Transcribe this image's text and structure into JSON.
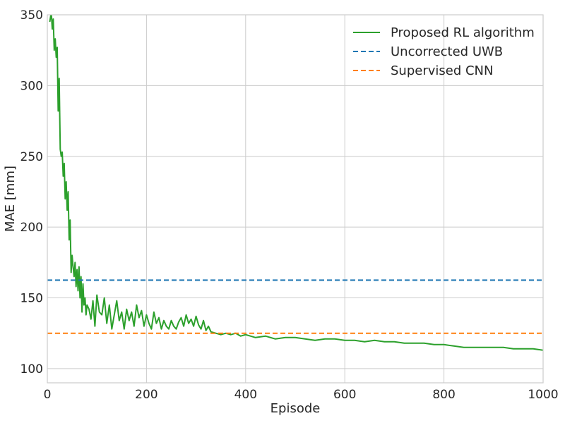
{
  "chart_data": {
    "type": "line",
    "title": "",
    "xlabel": "Episode",
    "ylabel": "MAE [mm]",
    "xlim": [
      0,
      1000
    ],
    "ylim": [
      90,
      350
    ],
    "xticks": [
      0,
      200,
      400,
      600,
      800,
      1000
    ],
    "yticks": [
      100,
      150,
      200,
      250,
      300,
      350
    ],
    "grid": true,
    "legend_position": "top-right",
    "series": [
      {
        "name": "Proposed RL algorithm",
        "style": "solid",
        "color": "#2ca02c",
        "x": [
          5,
          8,
          10,
          12,
          14,
          16,
          18,
          20,
          22,
          24,
          26,
          28,
          30,
          32,
          34,
          36,
          38,
          40,
          42,
          44,
          46,
          48,
          50,
          52,
          54,
          56,
          58,
          60,
          62,
          64,
          66,
          68,
          70,
          72,
          74,
          76,
          78,
          80,
          84,
          88,
          92,
          96,
          100,
          105,
          110,
          115,
          120,
          125,
          130,
          135,
          140,
          145,
          150,
          155,
          160,
          165,
          170,
          175,
          180,
          185,
          190,
          195,
          200,
          205,
          210,
          215,
          220,
          225,
          230,
          235,
          240,
          245,
          250,
          255,
          260,
          265,
          270,
          275,
          280,
          285,
          290,
          295,
          300,
          305,
          310,
          315,
          320,
          325,
          330,
          340,
          350,
          360,
          370,
          380,
          390,
          400,
          420,
          440,
          460,
          480,
          500,
          520,
          540,
          560,
          580,
          600,
          620,
          640,
          660,
          680,
          700,
          720,
          740,
          760,
          780,
          800,
          820,
          840,
          860,
          880,
          900,
          920,
          940,
          960,
          980,
          1000
        ],
        "y": [
          345,
          352,
          340,
          347,
          325,
          333,
          320,
          327,
          282,
          305,
          255,
          250,
          253,
          236,
          245,
          220,
          232,
          212,
          225,
          191,
          205,
          168,
          180,
          172,
          165,
          175,
          158,
          170,
          155,
          172,
          150,
          165,
          140,
          160,
          145,
          150,
          138,
          145,
          142,
          135,
          148,
          130,
          152,
          140,
          138,
          150,
          132,
          145,
          128,
          138,
          148,
          134,
          140,
          128,
          142,
          134,
          140,
          130,
          145,
          136,
          141,
          130,
          138,
          132,
          128,
          140,
          132,
          136,
          128,
          134,
          130,
          128,
          134,
          130,
          128,
          133,
          136,
          130,
          138,
          132,
          135,
          130,
          137,
          131,
          128,
          134,
          127,
          130,
          126,
          125,
          124,
          125,
          124,
          125,
          123,
          124,
          122,
          123,
          121,
          122,
          122,
          121,
          120,
          121,
          121,
          120,
          120,
          119,
          120,
          119,
          119,
          118,
          118,
          118,
          117,
          117,
          116,
          115,
          115,
          115,
          115,
          115,
          114,
          114,
          114,
          113
        ]
      },
      {
        "name": "Uncorrected UWB",
        "style": "dashed",
        "color": "#1f77b4",
        "x": [
          0,
          1000
        ],
        "y": [
          162.5,
          162.5
        ]
      },
      {
        "name": "Supervised CNN",
        "style": "dashed",
        "color": "#ff7f0e",
        "x": [
          0,
          1000
        ],
        "y": [
          125,
          125
        ]
      }
    ]
  },
  "colors": {
    "grid": "#cccccc",
    "frame": "#cccccc",
    "text": "#262626",
    "background": "#ffffff"
  }
}
